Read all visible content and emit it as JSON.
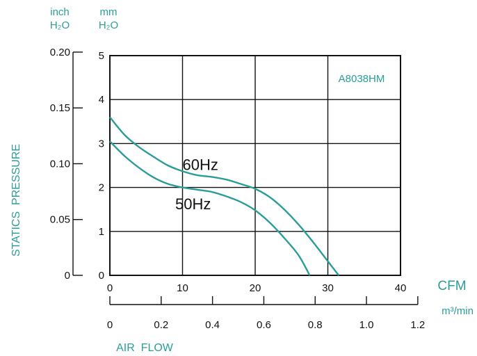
{
  "colors": {
    "accent": "#2a9d96",
    "ink": "#111111",
    "grid": "#111111"
  },
  "units": {
    "inch_label": "inch",
    "inch_sub": "H₂O",
    "mm_label": "mm",
    "mm_sub": "H₂O",
    "cfm_label": "CFM",
    "m3_label": "m³/min"
  },
  "chart_data": {
    "type": "line",
    "title": "A8038HM",
    "xlabel": "AIR  FLOW",
    "ylabel": "STATICS  PRESSURE",
    "x_unit": "CFM",
    "y_unit": "mm H₂O",
    "xlim": [
      0,
      40
    ],
    "ylim": [
      0,
      5
    ],
    "grid": true,
    "x_ticks": [
      0,
      10,
      20,
      30,
      40
    ],
    "y_ticks": [
      0,
      1,
      2,
      3,
      4,
      5
    ],
    "inch_ticks": [
      {
        "label": "0",
        "value": 0
      },
      {
        "label": "0.05",
        "value": 0.05
      },
      {
        "label": "0.10",
        "value": 0.1
      },
      {
        "label": "0.15",
        "value": 0.15
      },
      {
        "label": "0.20",
        "value": 0.2
      }
    ],
    "m3_ticks": [
      {
        "label": "0",
        "value": 0
      },
      {
        "label": "0.2",
        "value": 0.2
      },
      {
        "label": "0.4",
        "value": 0.4
      },
      {
        "label": "0.6",
        "value": 0.6
      },
      {
        "label": "0.8",
        "value": 0.8
      },
      {
        "label": "1.0",
        "value": 1.0
      },
      {
        "label": "1.2",
        "value": 1.2
      }
    ],
    "series": [
      {
        "name": "60Hz",
        "label_at": [
          10,
          2.4
        ],
        "points": [
          [
            0,
            3.6
          ],
          [
            2,
            3.2
          ],
          [
            4,
            2.92
          ],
          [
            6,
            2.7
          ],
          [
            8,
            2.5
          ],
          [
            10,
            2.37
          ],
          [
            12,
            2.28
          ],
          [
            14,
            2.24
          ],
          [
            16,
            2.18
          ],
          [
            18,
            2.08
          ],
          [
            20,
            1.97
          ],
          [
            22,
            1.78
          ],
          [
            24,
            1.5
          ],
          [
            26,
            1.15
          ],
          [
            28,
            0.75
          ],
          [
            30,
            0.32
          ],
          [
            31.5,
            0
          ]
        ]
      },
      {
        "name": "50Hz",
        "label_at": [
          9,
          1.5
        ],
        "points": [
          [
            0,
            3.05
          ],
          [
            2,
            2.72
          ],
          [
            4,
            2.45
          ],
          [
            6,
            2.23
          ],
          [
            8,
            2.08
          ],
          [
            10,
            2.0
          ],
          [
            12,
            1.95
          ],
          [
            14,
            1.9
          ],
          [
            16,
            1.8
          ],
          [
            18,
            1.67
          ],
          [
            20,
            1.48
          ],
          [
            22,
            1.2
          ],
          [
            24,
            0.85
          ],
          [
            26,
            0.45
          ],
          [
            27.5,
            0
          ]
        ]
      }
    ]
  }
}
